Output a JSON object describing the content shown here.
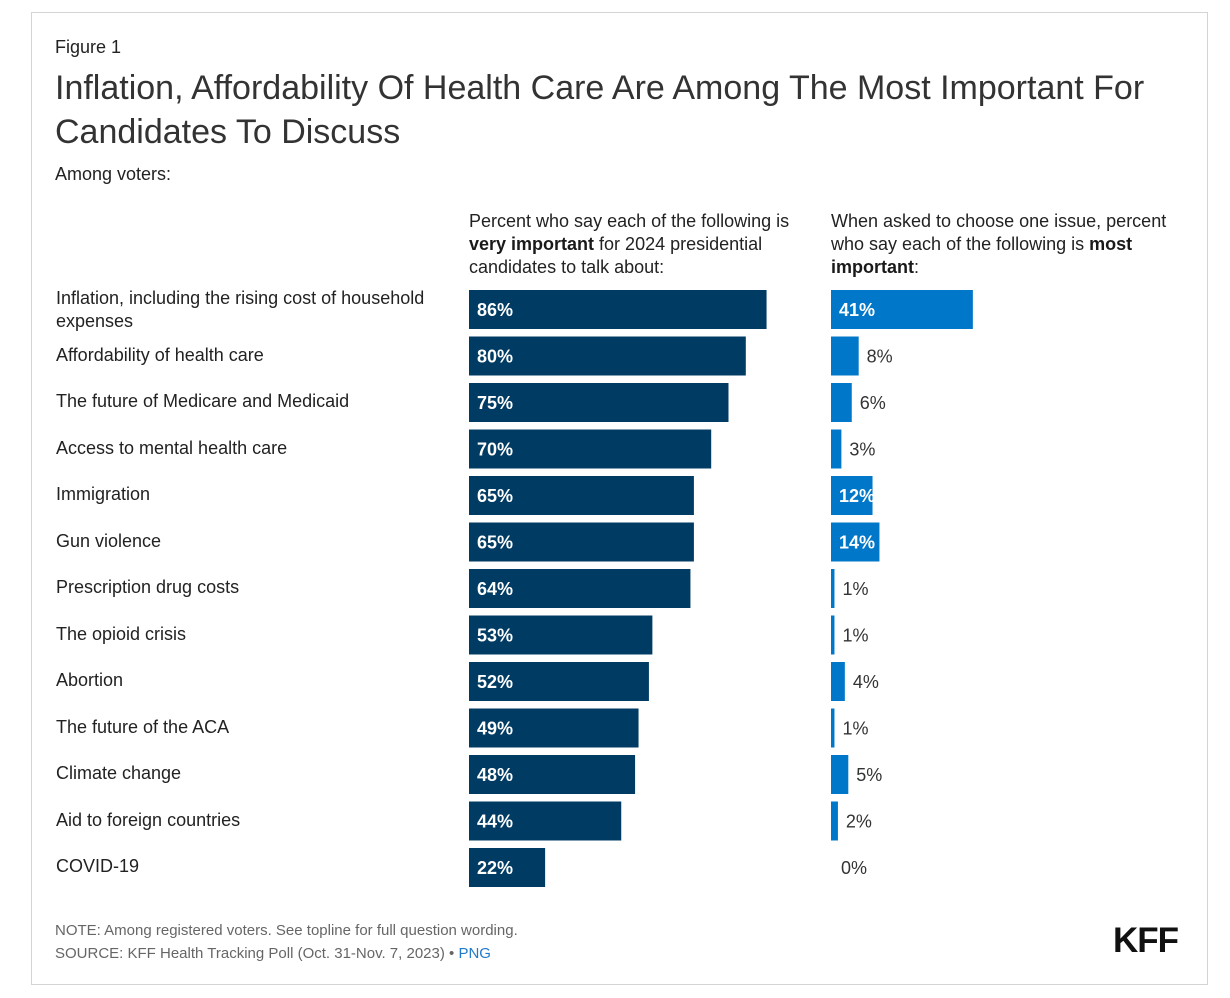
{
  "figure_label": "Figure 1",
  "title": "Inflation, Affordability Of Health Care Are Among The Most Important For Candidates To Discuss",
  "subtitle": "Among voters:",
  "column_headers": {
    "left": {
      "pre": "Percent who say each of the following is ",
      "bold": "very important",
      "post": " for 2024 presidential candidates to talk about:"
    },
    "right": {
      "pre": "When asked to choose one issue, percent who say each of the following is ",
      "bold": "most important",
      "post": ":"
    }
  },
  "colors": {
    "very_important": "#003b63",
    "most_important": "#0077c8",
    "bar_label_inside": "#ffffff",
    "bar_label_outside": "#333333"
  },
  "chart_data": {
    "type": "bar",
    "orientation": "horizontal",
    "categories": [
      "Inflation, including the rising cost of household expenses",
      "Affordability of health care",
      "The future of Medicare and Medicaid",
      "Access to mental health care",
      "Immigration",
      "Gun violence",
      "Prescription drug costs",
      "The opioid crisis",
      "Abortion",
      "The future of the ACA",
      "Climate change",
      "Aid to foreign countries",
      "COVID-19"
    ],
    "series": [
      {
        "name": "Very important for 2024 presidential candidates to talk about",
        "values": [
          86,
          80,
          75,
          70,
          65,
          65,
          64,
          53,
          52,
          49,
          48,
          44,
          22
        ]
      },
      {
        "name": "Most important (choose one issue)",
        "values": [
          41,
          8,
          6,
          3,
          12,
          14,
          1,
          1,
          4,
          1,
          5,
          2,
          0
        ]
      }
    ],
    "value_suffix": "%",
    "xlim": [
      0,
      100
    ],
    "grid": false,
    "legend": "column headers"
  },
  "footer": {
    "note": "NOTE: Among registered voters. See topline for full question wording.",
    "source": "SOURCE: KFF Health Tracking Poll (Oct. 31-Nov. 7, 2023) • ",
    "png_link": "PNG"
  },
  "logo_text": "KFF"
}
